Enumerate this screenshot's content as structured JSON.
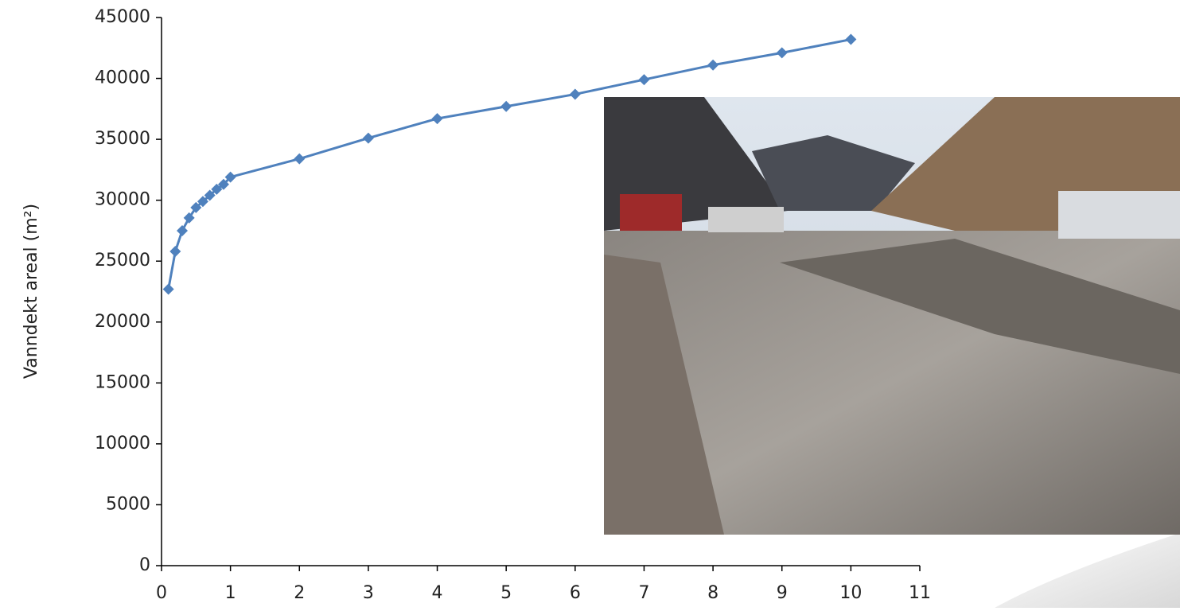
{
  "chart_data": {
    "type": "line",
    "y_label": "Vanndekt areal (m²)",
    "x": [
      0.1,
      0.2,
      0.3,
      0.4,
      0.5,
      0.6,
      0.7,
      0.8,
      0.9,
      1,
      2,
      3,
      4,
      5,
      6,
      7,
      8,
      9,
      10
    ],
    "series": [
      {
        "color": "#4f81bd",
        "values": [
          22700,
          25800,
          27500,
          28550,
          29400,
          29900,
          30400,
          30900,
          31300,
          31900,
          33400,
          35100,
          36700,
          37700,
          38700,
          39900,
          41100,
          42100,
          43200
        ]
      }
    ],
    "xlim": [
      0,
      11
    ],
    "xticks": [
      0,
      1,
      2,
      3,
      4,
      5,
      6,
      7,
      8,
      9,
      10,
      11
    ],
    "ylim": [
      0,
      45000
    ],
    "yticks": [
      0,
      5000,
      10000,
      15000,
      20000,
      25000,
      30000,
      35000,
      40000,
      45000
    ],
    "grid": false
  }
}
